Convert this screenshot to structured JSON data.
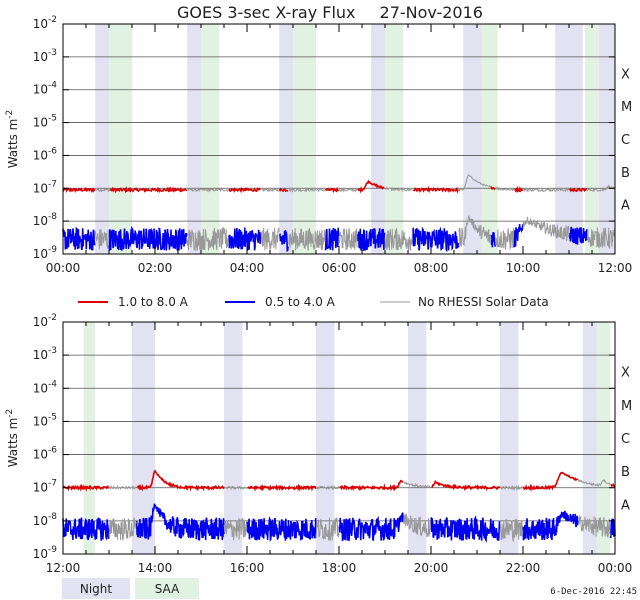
{
  "chart_data": {
    "type": "line",
    "title": "GOES 3-sec X-ray Flux",
    "date": "27-Nov-2016",
    "ylabel": "Watts m",
    "ylabel_sup": "-2",
    "yscale": "log",
    "ylim": [
      1e-09,
      0.01
    ],
    "ytick_exponents": [
      "-2",
      "-3",
      "-4",
      "-5",
      "-6",
      "-7",
      "-8",
      "-9"
    ],
    "ytick_base": "10",
    "flare_classes": [
      {
        "label": "X",
        "exp": -4
      },
      {
        "label": "M",
        "exp": -5
      },
      {
        "label": "C",
        "exp": -6
      },
      {
        "label": "B",
        "exp": -7
      },
      {
        "label": "A",
        "exp": -8
      }
    ],
    "legend": {
      "long": {
        "label": "1.0 to 8.0 A",
        "color": "#dd0000"
      },
      "short": {
        "label": "0.5 to 4.0 A",
        "color": "#0000ee"
      },
      "nodata": {
        "label": "No RHESSI Solar Data",
        "color": "#999999"
      }
    },
    "shading_legend": {
      "night": {
        "label": "Night",
        "color": "#e2e2f2"
      },
      "saa": {
        "label": "SAA",
        "color": "#e2f2e2"
      }
    },
    "footer_timestamp": "6-Dec-2016 22:45",
    "panels": [
      {
        "name": "panel-1",
        "xlim_hours": [
          0,
          12
        ],
        "xtick_labels": [
          "00:00",
          "02:00",
          "04:00",
          "06:00",
          "08:00",
          "10:00",
          "12:00"
        ],
        "night_intervals_hours": [
          [
            0.7,
            1.0
          ],
          [
            2.7,
            3.0
          ],
          [
            4.7,
            5.0
          ],
          [
            6.7,
            7.0
          ],
          [
            8.7,
            9.1
          ],
          [
            10.7,
            11.3
          ],
          [
            11.65,
            12.0
          ]
        ],
        "saa_intervals_hours": [
          [
            1.0,
            1.5
          ],
          [
            3.0,
            3.4
          ],
          [
            5.0,
            5.5
          ],
          [
            7.0,
            7.4
          ],
          [
            9.1,
            9.45
          ],
          [
            11.35,
            11.65
          ]
        ],
        "long_events": [
          {
            "peak_hour": 6.65,
            "peak_exp": -6.8,
            "rise": 0.08,
            "decay": 0.2
          },
          {
            "peak_hour": 8.82,
            "peak_exp": -6.6,
            "rise": 0.06,
            "decay": 0.22
          },
          {
            "peak_hour": 11.85,
            "peak_exp": -6.95,
            "rise": 0.05,
            "decay": 0.15
          }
        ],
        "short_events": [
          {
            "peak_hour": 8.82,
            "peak_exp": -7.9,
            "rise": 0.05,
            "decay": 0.15
          },
          {
            "peak_hour": 10.1,
            "peak_exp": -8.0,
            "rise": 0.15,
            "decay": 0.45
          }
        ],
        "long_baseline_exp": -7.05,
        "short_baseline_exp": -8.55,
        "grey_intervals_hours": [
          [
            0.7,
            1.0
          ],
          [
            2.7,
            3.6
          ],
          [
            4.3,
            4.7
          ],
          [
            4.9,
            5.7
          ],
          [
            6.0,
            6.4
          ],
          [
            7.0,
            7.6
          ],
          [
            8.6,
            9.3
          ],
          [
            9.4,
            9.8
          ],
          [
            10.0,
            11.0
          ],
          [
            11.4,
            12.0
          ]
        ]
      },
      {
        "name": "panel-2",
        "xlim_hours": [
          12,
          24
        ],
        "xtick_labels": [
          "12:00",
          "14:00",
          "16:00",
          "18:00",
          "20:00",
          "22:00",
          "00:00"
        ],
        "night_intervals_hours": [
          [
            13.5,
            14.0
          ],
          [
            15.5,
            15.9
          ],
          [
            17.5,
            17.9
          ],
          [
            19.5,
            19.9
          ],
          [
            21.5,
            21.9
          ],
          [
            23.3,
            23.6
          ]
        ],
        "saa_intervals_hours": [
          [
            12.45,
            12.7
          ],
          [
            23.6,
            23.9
          ]
        ],
        "long_events": [
          {
            "peak_hour": 14.0,
            "peak_exp": -6.5,
            "rise": 0.05,
            "decay": 0.15
          },
          {
            "peak_hour": 19.35,
            "peak_exp": -6.8,
            "rise": 0.06,
            "decay": 0.25
          },
          {
            "peak_hour": 20.1,
            "peak_exp": -6.85,
            "rise": 0.05,
            "decay": 0.2
          },
          {
            "peak_hour": 22.85,
            "peak_exp": -6.55,
            "rise": 0.1,
            "decay": 0.35
          },
          {
            "peak_hour": 23.75,
            "peak_exp": -6.8,
            "rise": 0.05,
            "decay": 0.12
          }
        ],
        "short_events": [
          {
            "peak_hour": 14.0,
            "peak_exp": -7.5,
            "rise": 0.05,
            "decay": 0.12
          },
          {
            "peak_hour": 19.35,
            "peak_exp": -7.9,
            "rise": 0.05,
            "decay": 0.2
          },
          {
            "peak_hour": 22.85,
            "peak_exp": -7.8,
            "rise": 0.08,
            "decay": 0.3
          }
        ],
        "long_baseline_exp": -7.0,
        "short_baseline_exp": -8.25,
        "grey_intervals_hours": [
          [
            13.0,
            13.6
          ],
          [
            15.5,
            16.0
          ],
          [
            17.5,
            18.0
          ],
          [
            19.4,
            20.0
          ],
          [
            21.5,
            22.0
          ],
          [
            23.2,
            23.9
          ]
        ]
      }
    ]
  }
}
